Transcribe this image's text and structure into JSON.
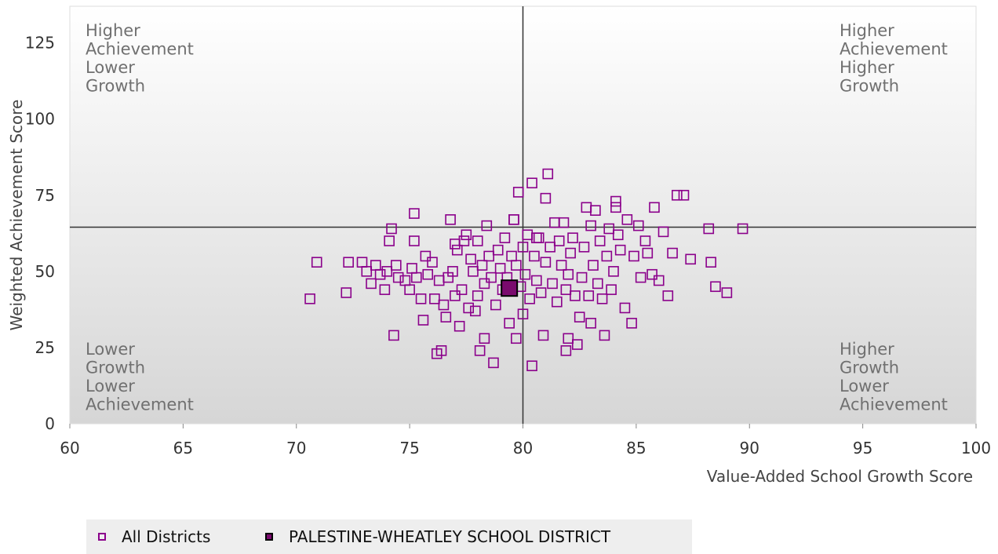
{
  "chart_data": {
    "type": "scatter",
    "title": "",
    "xlabel": "Value-Added School Growth Score",
    "ylabel": "Weighted Achievement Score",
    "xlim": [
      60,
      100
    ],
    "ylim": [
      0,
      137
    ],
    "x_ticks": [
      "60",
      "65",
      "70",
      "75",
      "80",
      "85",
      "90",
      "95",
      "100"
    ],
    "y_ticks": [
      "0",
      "25",
      "50",
      "75",
      "100",
      "125"
    ],
    "reference_lines": {
      "x": 80,
      "y": 64.5
    },
    "grid": false,
    "legend_position": "bottom-left",
    "quadrant_labels": {
      "top_left": [
        "Higher",
        "Achievement",
        "Lower",
        "Growth"
      ],
      "top_right": [
        "Higher",
        "Achievement",
        "Higher",
        "Growth"
      ],
      "bottom_left": [
        "Lower",
        "Growth",
        "Lower",
        "Achievement"
      ],
      "bottom_right": [
        "Higher",
        "Growth",
        "Lower",
        "Achievement"
      ]
    },
    "series": [
      {
        "name": "All Districts",
        "marker": "hollow-square",
        "color": "#8b008b",
        "points": [
          [
            70.6,
            41
          ],
          [
            70.9,
            53
          ],
          [
            72.2,
            43
          ],
          [
            72.3,
            53
          ],
          [
            72.9,
            53
          ],
          [
            73.1,
            50
          ],
          [
            73.3,
            46
          ],
          [
            73.5,
            52
          ],
          [
            73.7,
            49
          ],
          [
            73.9,
            44
          ],
          [
            74.0,
            50
          ],
          [
            74.1,
            60
          ],
          [
            74.2,
            64
          ],
          [
            74.4,
            52
          ],
          [
            74.5,
            48
          ],
          [
            74.3,
            29
          ],
          [
            74.8,
            47
          ],
          [
            75.0,
            44
          ],
          [
            75.1,
            51
          ],
          [
            75.2,
            69
          ],
          [
            75.3,
            48
          ],
          [
            75.2,
            60
          ],
          [
            75.5,
            41
          ],
          [
            75.6,
            34
          ],
          [
            75.7,
            55
          ],
          [
            75.8,
            49
          ],
          [
            76.0,
            53
          ],
          [
            76.1,
            41
          ],
          [
            76.2,
            23
          ],
          [
            76.3,
            47
          ],
          [
            76.4,
            24
          ],
          [
            76.5,
            39
          ],
          [
            76.6,
            35
          ],
          [
            76.7,
            48
          ],
          [
            76.8,
            67
          ],
          [
            76.9,
            50
          ],
          [
            77.0,
            42
          ],
          [
            77.0,
            59
          ],
          [
            77.1,
            57
          ],
          [
            77.2,
            32
          ],
          [
            77.3,
            44
          ],
          [
            77.4,
            60
          ],
          [
            77.5,
            62
          ],
          [
            77.6,
            38
          ],
          [
            77.7,
            54
          ],
          [
            77.8,
            50
          ],
          [
            77.9,
            37
          ],
          [
            78.0,
            42
          ],
          [
            78.0,
            60
          ],
          [
            78.1,
            24
          ],
          [
            78.2,
            52
          ],
          [
            78.3,
            28
          ],
          [
            78.3,
            46
          ],
          [
            78.4,
            65
          ],
          [
            78.5,
            55
          ],
          [
            78.6,
            48
          ],
          [
            78.7,
            20
          ],
          [
            78.8,
            39
          ],
          [
            78.9,
            57
          ],
          [
            79.0,
            51
          ],
          [
            79.1,
            44
          ],
          [
            79.2,
            61
          ],
          [
            79.3,
            48
          ],
          [
            79.4,
            33
          ],
          [
            79.5,
            55
          ],
          [
            79.6,
            67
          ],
          [
            79.7,
            28
          ],
          [
            79.7,
            52
          ],
          [
            79.8,
            76
          ],
          [
            79.9,
            45
          ],
          [
            80.0,
            36
          ],
          [
            80.0,
            58
          ],
          [
            80.1,
            49
          ],
          [
            80.2,
            62
          ],
          [
            80.3,
            41
          ],
          [
            80.4,
            19
          ],
          [
            80.4,
            79
          ],
          [
            80.5,
            55
          ],
          [
            80.6,
            47
          ],
          [
            80.7,
            61
          ],
          [
            80.8,
            43
          ],
          [
            80.9,
            29
          ],
          [
            81.0,
            74
          ],
          [
            81.0,
            53
          ],
          [
            81.1,
            82
          ],
          [
            81.2,
            58
          ],
          [
            81.3,
            46
          ],
          [
            81.4,
            66
          ],
          [
            81.5,
            40
          ],
          [
            81.6,
            60
          ],
          [
            81.7,
            52
          ],
          [
            81.8,
            66
          ],
          [
            81.9,
            44
          ],
          [
            82.0,
            28
          ],
          [
            82.0,
            49
          ],
          [
            82.1,
            56
          ],
          [
            82.2,
            61
          ],
          [
            82.3,
            42
          ],
          [
            82.4,
            26
          ],
          [
            82.5,
            35
          ],
          [
            82.6,
            48
          ],
          [
            82.7,
            58
          ],
          [
            82.8,
            71
          ],
          [
            82.9,
            42
          ],
          [
            83.0,
            33
          ],
          [
            83.0,
            65
          ],
          [
            83.1,
            52
          ],
          [
            83.2,
            70
          ],
          [
            83.3,
            46
          ],
          [
            83.4,
            60
          ],
          [
            83.5,
            41
          ],
          [
            83.6,
            29
          ],
          [
            83.7,
            55
          ],
          [
            83.8,
            64
          ],
          [
            83.9,
            44
          ],
          [
            84.0,
            50
          ],
          [
            84.1,
            73
          ],
          [
            84.2,
            62
          ],
          [
            84.3,
            57
          ],
          [
            84.5,
            38
          ],
          [
            84.6,
            67
          ],
          [
            84.8,
            33
          ],
          [
            84.9,
            55
          ],
          [
            85.1,
            65
          ],
          [
            85.2,
            48
          ],
          [
            85.4,
            60
          ],
          [
            85.5,
            56
          ],
          [
            85.7,
            49
          ],
          [
            85.8,
            71
          ],
          [
            86.0,
            47
          ],
          [
            86.2,
            63
          ],
          [
            86.4,
            42
          ],
          [
            86.6,
            56
          ],
          [
            86.8,
            75
          ],
          [
            87.1,
            75
          ],
          [
            87.4,
            54
          ],
          [
            88.2,
            64
          ],
          [
            88.3,
            53
          ],
          [
            88.5,
            45
          ],
          [
            89.0,
            43
          ],
          [
            89.7,
            64
          ],
          [
            81.9,
            24
          ],
          [
            79.6,
            67
          ],
          [
            84.1,
            71
          ],
          [
            80.6,
            61
          ]
        ]
      },
      {
        "name": "PALESTINE-WHEATLEY SCHOOL DISTRICT",
        "marker": "filled-square",
        "color": "#7a0a6e",
        "points": [
          [
            79.4,
            44.5
          ]
        ]
      }
    ]
  },
  "legend": {
    "all_districts_label": "All Districts",
    "district_label": "PALESTINE-WHEATLEY SCHOOL DISTRICT"
  }
}
